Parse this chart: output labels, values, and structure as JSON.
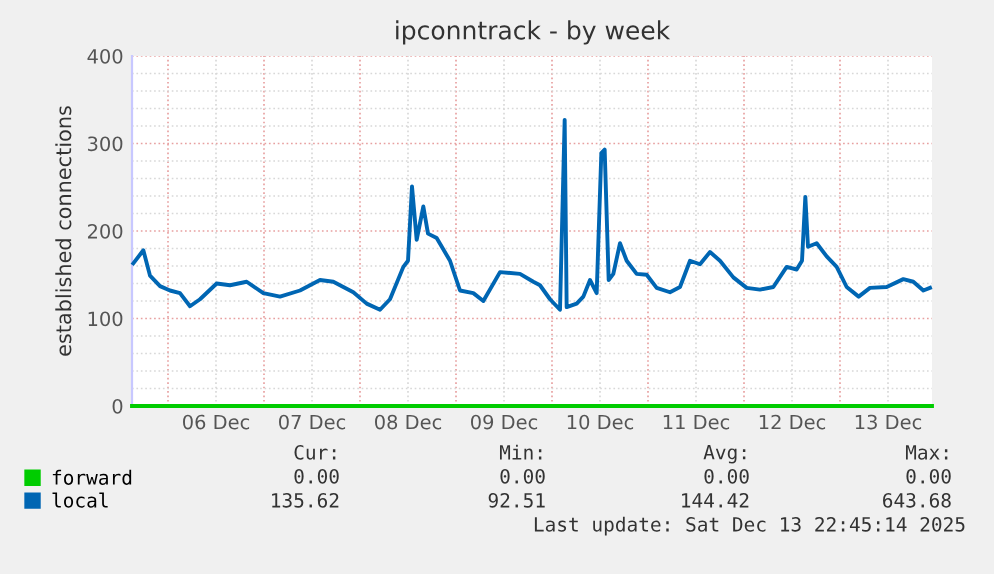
{
  "chart_data": {
    "type": "line",
    "title": "ipconntrack - by week",
    "ylabel": "established connections",
    "xlim": [
      "2025-12-05T15:00",
      "2025-12-13T23:00"
    ],
    "xticks": [
      {
        "value": "2025-12-06T00:00",
        "label": null
      },
      {
        "value": "2025-12-06T12:00",
        "label": "06 Dec"
      },
      {
        "value": "2025-12-07T00:00",
        "label": null
      },
      {
        "value": "2025-12-07T12:00",
        "label": "07 Dec"
      },
      {
        "value": "2025-12-08T00:00",
        "label": null
      },
      {
        "value": "2025-12-08T12:00",
        "label": "08 Dec"
      },
      {
        "value": "2025-12-09T00:00",
        "label": null
      },
      {
        "value": "2025-12-09T12:00",
        "label": "09 Dec"
      },
      {
        "value": "2025-12-10T00:00",
        "label": null
      },
      {
        "value": "2025-12-10T12:00",
        "label": "10 Dec"
      },
      {
        "value": "2025-12-11T00:00",
        "label": null
      },
      {
        "value": "2025-12-11T12:00",
        "label": "11 Dec"
      },
      {
        "value": "2025-12-12T00:00",
        "label": null
      },
      {
        "value": "2025-12-12T12:00",
        "label": "12 Dec"
      },
      {
        "value": "2025-12-13T00:00",
        "label": null
      },
      {
        "value": "2025-12-13T12:00",
        "label": "13 Dec"
      }
    ],
    "ylim": [
      0,
      400
    ],
    "yticks": [
      0,
      {
        "value": 20,
        "label": null
      },
      {
        "value": 40,
        "label": null
      },
      {
        "value": 60,
        "label": null
      },
      {
        "value": 80,
        "label": null
      },
      100,
      {
        "value": 120,
        "label": null
      },
      {
        "value": 140,
        "label": null
      },
      {
        "value": 160,
        "label": null
      },
      {
        "value": 180,
        "label": null
      },
      200,
      {
        "value": 220,
        "label": null
      },
      {
        "value": 240,
        "label": null
      },
      {
        "value": 260,
        "label": null
      },
      {
        "value": 280,
        "label": null
      },
      300,
      {
        "value": 320,
        "label": null
      },
      {
        "value": 340,
        "label": null
      },
      {
        "value": 360,
        "label": null
      },
      {
        "value": 380,
        "label": null
      },
      400
    ],
    "grid": true,
    "legend": "bottom left",
    "line_style": "solid",
    "series": [
      {
        "name": "forward",
        "color": "#00cc00",
        "x": [
          "2025-12-05T15:00",
          "2025-12-13T23:00"
        ],
        "values": [
          0,
          0
        ]
      },
      {
        "name": "local",
        "color": "#0066b3",
        "x": [
          "2025-12-05T15:20",
          "2025-12-05T17:50",
          "2025-12-05T19:30",
          "2025-12-05T22:00",
          "2025-12-06T00:30",
          "2025-12-06T03:00",
          "2025-12-06T05:30",
          "2025-12-06T08:00",
          "2025-12-06T12:10",
          "2025-12-06T15:30",
          "2025-12-06T19:40",
          "2025-12-06T23:50",
          "2025-12-07T04:00",
          "2025-12-07T09:00",
          "2025-12-07T14:00",
          "2025-12-07T17:20",
          "2025-12-07T22:20",
          "2025-12-08T01:40",
          "2025-12-08T05:00",
          "2025-12-08T07:30",
          "2025-12-08T10:50",
          "2025-12-08T12:00",
          "2025-12-08T13:00",
          "2025-12-08T14:10",
          "2025-12-08T15:50",
          "2025-12-08T17:00",
          "2025-12-08T19:10",
          "2025-12-08T22:30",
          "2025-12-09T01:00",
          "2025-12-09T04:20",
          "2025-12-09T06:50",
          "2025-12-09T11:00",
          "2025-12-09T16:00",
          "2025-12-09T19:20",
          "2025-12-09T21:00",
          "2025-12-09T23:30",
          "2025-12-10T02:00",
          "2025-12-10T03:10",
          "2025-12-10T03:40",
          "2025-12-10T06:10",
          "2025-12-10T07:50",
          "2025-12-10T09:30",
          "2025-12-10T11:10",
          "2025-12-10T12:20",
          "2025-12-10T13:10",
          "2025-12-10T14:10",
          "2025-12-10T15:20",
          "2025-12-10T17:00",
          "2025-12-10T18:40",
          "2025-12-10T21:10",
          "2025-12-10T23:40",
          "2025-12-11T02:10",
          "2025-12-11T05:30",
          "2025-12-11T08:00",
          "2025-12-11T10:30",
          "2025-12-11T13:00",
          "2025-12-11T15:30",
          "2025-12-11T18:00",
          "2025-12-11T21:20",
          "2025-12-12T00:40",
          "2025-12-12T04:00",
          "2025-12-12T07:20",
          "2025-12-12T10:40",
          "2025-12-12T13:10",
          "2025-12-12T14:30",
          "2025-12-12T15:20",
          "2025-12-12T16:00",
          "2025-12-12T18:10",
          "2025-12-12T20:40",
          "2025-12-12T23:10",
          "2025-12-13T01:40",
          "2025-12-13T04:40",
          "2025-12-13T07:30",
          "2025-12-13T11:40",
          "2025-12-13T15:50",
          "2025-12-13T18:20",
          "2025-12-13T20:50",
          "2025-12-13T22:30"
        ],
        "values": [
          163,
          178,
          149,
          137,
          132,
          129,
          114,
          122,
          140,
          138,
          142,
          129,
          125,
          132,
          144,
          142,
          130,
          117,
          110,
          122,
          159,
          166,
          251,
          190,
          228,
          197,
          192,
          166,
          132,
          129,
          120,
          153,
          151,
          142,
          138,
          122,
          110,
          327,
          113,
          117,
          125,
          144,
          129,
          289,
          293,
          144,
          151,
          186,
          166,
          151,
          150,
          135,
          130,
          136,
          166,
          162,
          176,
          166,
          147,
          135,
          133,
          136,
          159,
          156,
          166,
          239,
          182,
          186,
          171,
          159,
          136,
          125,
          135,
          136,
          145,
          142,
          132,
          135
        ]
      }
    ],
    "annotations": [
      "Cur:",
      "Min:",
      "Avg:",
      "Max:",
      "0.00",
      "0.00",
      "0.00",
      "0.00",
      "135.62",
      "92.51",
      "144.42",
      "643.68",
      "Last update: Sat Dec 13 22:45:14 2025"
    ]
  }
}
